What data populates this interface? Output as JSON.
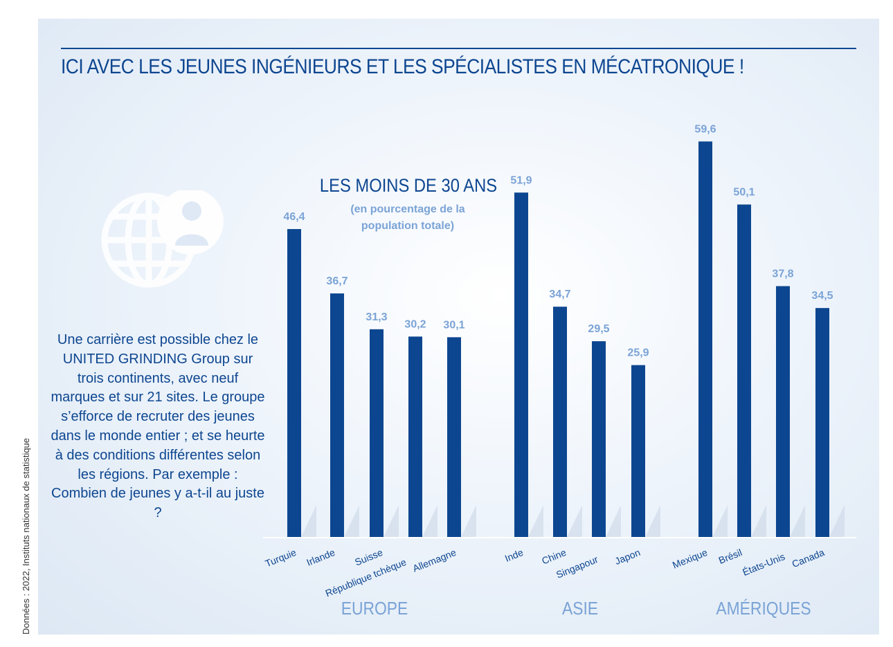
{
  "header": {
    "title": "ICI AVEC LES JEUNES INGÉNIEURS ET LES SPÉCIALISTES EN MÉCATRONIQUE !"
  },
  "source": "Données : 2022, Instituts nationaux de statistique",
  "intro_text": "Une carrière est possible chez le UNITED GRINDING Group sur trois continents, avec neuf marques et sur 21 sites. Le groupe s’efforce de recruter des jeunes dans le monde entier ; et se heurte à des conditions différentes selon les régions. Par exemple : Combien de jeunes y a-t-il au juste ?",
  "icon": "globe-person-icon",
  "colors": {
    "bar": "#0d4690",
    "value_label": "#7aa3d6",
    "group_label": "#7aa3d6",
    "text": "#0d4690"
  },
  "chart_data": {
    "type": "bar",
    "title": "LES MOINS DE 30 ANS",
    "subtitle": "(en pourcentage de la population totale)",
    "unit": "%",
    "categories": [
      "Turquie",
      "Irlande",
      "Suisse",
      "République tchèque",
      "Allemagne",
      "Inde",
      "Chine",
      "Singapour",
      "Japon",
      "Mexique",
      "Brésil",
      "États-Unis",
      "Canada"
    ],
    "values": [
      46.4,
      36.7,
      31.3,
      30.2,
      30.1,
      51.9,
      34.7,
      29.5,
      25.9,
      59.6,
      50.1,
      37.8,
      34.5
    ],
    "value_labels": [
      "46,4",
      "36,7",
      "31,3",
      "30,2",
      "30,1",
      "51,9",
      "34,7",
      "29,5",
      "25,9",
      "59,6",
      "50,1",
      "37,8",
      "34,5"
    ],
    "groups": [
      {
        "name": "EUROPE",
        "categories": [
          "Turquie",
          "Irlande",
          "Suisse",
          "République tchèque",
          "Allemagne"
        ]
      },
      {
        "name": "ASIE",
        "categories": [
          "Inde",
          "Chine",
          "Singapour",
          "Japon"
        ]
      },
      {
        "name": "AMÉRIQUES",
        "categories": [
          "Mexique",
          "Brésil",
          "États-Unis",
          "Canada"
        ]
      }
    ],
    "ylim": [
      0,
      60
    ],
    "grid": false,
    "legend": "none"
  }
}
